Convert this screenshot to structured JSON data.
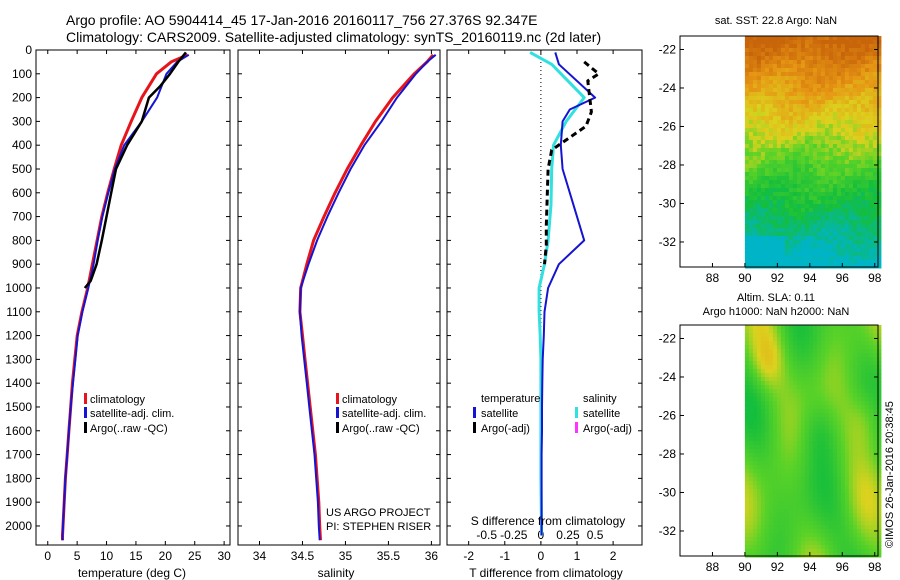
{
  "title_line1": "Argo profile: AO 5904414_45 17-Jan-2016 20160117_756 27.376S 92.347E",
  "title_line2": "Climatology: CARS2009. Satellite-adjusted climatology: synTS_20160119.nc (2d later)",
  "colors": {
    "climatology": "#e8141b",
    "satellite": "#1414d2",
    "argo": "#000000",
    "sat_salinity": "#33e0e0",
    "argo_salinity": "#ff33ff"
  },
  "chart_data": [
    {
      "type": "line",
      "panel": "temperature",
      "xlabel": "temperature (deg C)",
      "ylabel": "",
      "xlim": [
        -2,
        31
      ],
      "ylim": [
        2080,
        0
      ],
      "xticks": [
        0,
        5,
        10,
        15,
        20,
        25,
        30
      ],
      "yticks": [
        0,
        100,
        200,
        300,
        400,
        500,
        600,
        700,
        800,
        900,
        1000,
        1100,
        1200,
        1300,
        1400,
        1500,
        1600,
        1700,
        1800,
        1900,
        2000
      ],
      "legend": [
        "climatology",
        "satellite-adj. clim.",
        "Argo(..raw -QC)"
      ],
      "series": [
        {
          "name": "climatology",
          "color": "climatology",
          "x": [
            23.8,
            21,
            18.5,
            16,
            14.2,
            12.5,
            11.3,
            10.2,
            9.2,
            8.4,
            7.6,
            6.8,
            5.8,
            5,
            4.6,
            4.2,
            3.9,
            3.6,
            3.3,
            3.0,
            2.8,
            2.6,
            2.5,
            2.5
          ],
          "y": [
            20,
            50,
            100,
            200,
            300,
            400,
            500,
            600,
            700,
            800,
            900,
            1000,
            1100,
            1200,
            1300,
            1400,
            1500,
            1600,
            1700,
            1800,
            1900,
            2000,
            2040,
            2060
          ]
        },
        {
          "name": "satellite-adj. clim.",
          "color": "satellite",
          "x": [
            24,
            22,
            20.2,
            18.6,
            16,
            13,
            11.4,
            10.3,
            9.3,
            8.5,
            7.8,
            6.9,
            5.9,
            5.1,
            4.7,
            4.3,
            3.9,
            3.6,
            3.3,
            3.0,
            2.8,
            2.6,
            2.5,
            2.5
          ],
          "y": [
            20,
            50,
            100,
            200,
            300,
            400,
            500,
            600,
            700,
            800,
            900,
            1000,
            1100,
            1200,
            1300,
            1400,
            1500,
            1600,
            1700,
            1800,
            1900,
            2000,
            2040,
            2060
          ]
        },
        {
          "name": "Argo(..raw -QC)",
          "color": "argo",
          "x": [
            23.5,
            22.2,
            20.8,
            19.2,
            17.2,
            16,
            13.5,
            11.6,
            10.8,
            10,
            9.2,
            8.3,
            7.3,
            6.3
          ],
          "y": [
            10,
            50,
            100,
            150,
            200,
            300,
            400,
            500,
            600,
            700,
            800,
            900,
            970,
            1000
          ]
        }
      ]
    },
    {
      "type": "line",
      "panel": "salinity",
      "xlabel": "salinity",
      "ylabel": "",
      "xlim": [
        33.75,
        36.1
      ],
      "ylim": [
        2080,
        0
      ],
      "xticks": [
        34,
        34.5,
        35,
        35.5,
        36
      ],
      "xtick_labels": [
        "34",
        "34.5",
        "35",
        "35.5",
        "36"
      ],
      "legend": [
        "climatology",
        "satellite-adj. clim.",
        "Argo(..raw -QC)"
      ],
      "annotation1": "US ARGO PROJECT",
      "annotation2": "PI: STEPHEN RISER",
      "series": [
        {
          "name": "climatology",
          "color": "climatology",
          "x": [
            36.02,
            35.95,
            35.8,
            35.55,
            35.35,
            35.18,
            35.02,
            34.88,
            34.75,
            34.63,
            34.55,
            34.48,
            34.47,
            34.5,
            34.53,
            34.56,
            34.59,
            34.62,
            34.65,
            34.67,
            34.69,
            34.7,
            34.71
          ],
          "y": [
            20,
            50,
            100,
            200,
            300,
            400,
            500,
            600,
            700,
            800,
            900,
            1000,
            1100,
            1200,
            1300,
            1400,
            1500,
            1600,
            1700,
            1800,
            1900,
            2000,
            2060
          ]
        },
        {
          "name": "satellite-adj. clim.",
          "color": "satellite",
          "x": [
            36.05,
            35.95,
            35.82,
            35.6,
            35.42,
            35.22,
            35.06,
            34.92,
            34.79,
            34.67,
            34.57,
            34.48,
            34.47,
            34.49,
            34.52,
            34.55,
            34.58,
            34.61,
            34.64,
            34.66,
            34.68,
            34.69,
            34.7
          ],
          "y": [
            20,
            50,
            100,
            200,
            300,
            400,
            500,
            600,
            700,
            800,
            900,
            1000,
            1100,
            1200,
            1300,
            1400,
            1500,
            1600,
            1700,
            1800,
            1900,
            2000,
            2060
          ]
        }
      ]
    },
    {
      "type": "line",
      "panel": "difference",
      "xlabel": "T difference from climatology",
      "xlabel_top": "S difference from climatology",
      "ylim": [
        2080,
        0
      ],
      "xlim": [
        -2.6,
        2.8
      ],
      "xticks": [
        -2,
        -1,
        0,
        1,
        2
      ],
      "s_ticks": [
        "-0.5",
        "-0.25",
        "0",
        "0.25",
        "0.5"
      ],
      "legend_temperature_title": "temperature",
      "legend_salinity_title": "salinity",
      "legend_items": [
        "satellite",
        "Argo(-adj)",
        "satellite",
        "Argo(-adj)"
      ],
      "series": [
        {
          "name": "temperature satellite",
          "color": "satellite",
          "x": [
            0.4,
            0.5,
            1.5,
            0.8,
            0.6,
            0.55,
            0.6,
            0.9,
            1.2,
            0.5,
            0.2,
            0.1,
            0.08,
            0.05,
            0.04,
            0.03,
            0.03,
            0.02,
            0.02,
            0.02
          ],
          "y": [
            10,
            60,
            200,
            250,
            300,
            400,
            500,
            650,
            800,
            900,
            1000,
            1100,
            1200,
            1300,
            1400,
            1500,
            1600,
            1700,
            1800,
            2040
          ]
        },
        {
          "name": "salinity satellite",
          "color": "sat_salinity",
          "x": [
            -0.3,
            0.3,
            1.2,
            0.7,
            0.35,
            0.3,
            0.28,
            0.2,
            0.1,
            -0.05,
            -0.05,
            -0.02,
            0.0,
            0.0,
            0.0,
            0.02
          ],
          "y": [
            10,
            60,
            200,
            300,
            400,
            500,
            650,
            800,
            900,
            1000,
            1100,
            1200,
            1300,
            1500,
            1800,
            2040
          ]
        },
        {
          "name": "Argo temperature diff",
          "color": "argo",
          "x": [
            1.2,
            1.6,
            1.3,
            1.4,
            1.25,
            0.3,
            0.2,
            0.15,
            0.15,
            0.1
          ],
          "y": [
            50,
            100,
            130,
            260,
            320,
            420,
            500,
            740,
            820,
            900
          ]
        }
      ]
    },
    {
      "type": "heatmap",
      "panel": "sst-map",
      "title": "sat. SST: 22.8 Argo: NaN",
      "xlim": [
        86,
        98.2
      ],
      "ylim": [
        -33.3,
        -21.3
      ],
      "xticks": [
        88,
        90,
        92,
        94,
        96,
        98
      ],
      "yticks": [
        -22,
        -24,
        -26,
        -28,
        -30,
        -32
      ]
    },
    {
      "type": "heatmap",
      "panel": "sla-map",
      "title_line1": "Altim. SLA: 0.11",
      "title_line2": "Argo h1000: NaN h2000: NaN",
      "xlim": [
        86,
        98.2
      ],
      "ylim": [
        -33.3,
        -21.3
      ],
      "xticks": [
        88,
        90,
        92,
        94,
        96,
        98
      ],
      "yticks": [
        -22,
        -24,
        -26,
        -28,
        -30,
        -32
      ],
      "side_label": "©IMOS 26-Jan-2016 20:38:45"
    }
  ]
}
